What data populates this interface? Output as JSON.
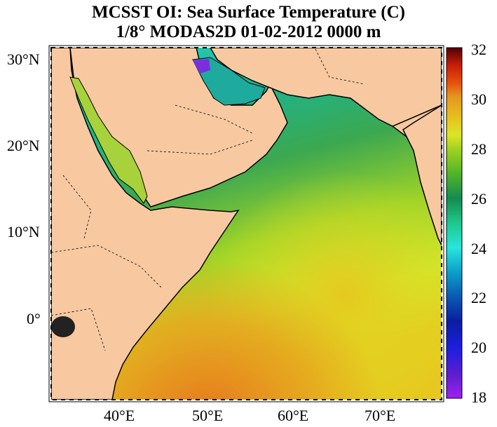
{
  "title": {
    "line1": "MCSST OI:  Sea Surface Temperature (C)",
    "line2": "1/8° MODAS2D 01-02-2012 0000 m"
  },
  "map": {
    "region": "Arabian Sea / Red Sea / Persian Gulf",
    "lat_range": [
      -9,
      31
    ],
    "lon_range": [
      32,
      77
    ],
    "lat_ticks": [
      "30°N",
      "20°N",
      "10°N",
      "0°"
    ],
    "lon_ticks": [
      "40°E",
      "50°E",
      "60°E",
      "70°E"
    ],
    "land_color": "#f8c8a0",
    "coast_color": "#000000"
  },
  "colorbar": {
    "range": [
      18,
      32
    ],
    "tick_labels": [
      "32",
      "30",
      "28",
      "26",
      "24",
      "22",
      "20",
      "18"
    ],
    "colors": [
      "#a020f0",
      "#5a1ed0",
      "#1e1ee0",
      "#0a1ea0",
      "#0a5ab4",
      "#0aa0c8",
      "#28e6dc",
      "#1ec88c",
      "#148c50",
      "#50b428",
      "#a0d21e",
      "#dce628",
      "#e6c81e",
      "#e6961e",
      "#e6500a",
      "#c81e0a",
      "#8c0a0a",
      "#500000"
    ]
  }
}
